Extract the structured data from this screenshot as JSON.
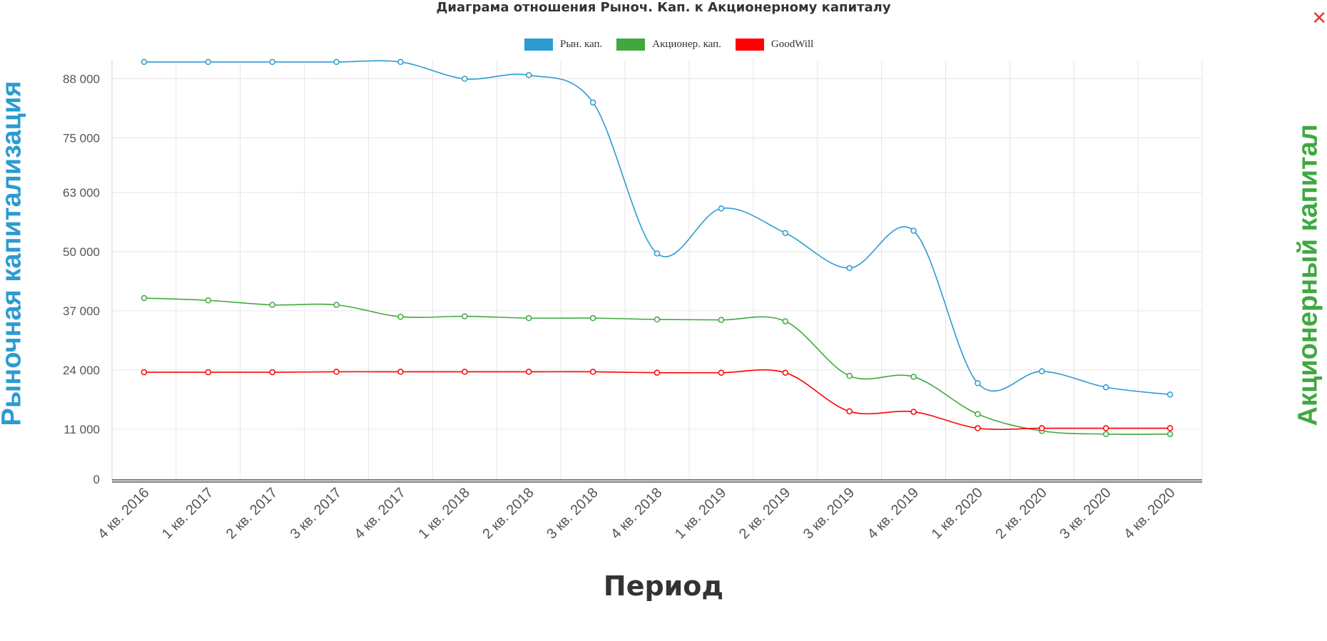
{
  "close_icon": "✕",
  "chart_data": {
    "type": "line",
    "title": "Диаграма отношения Рыноч. Кап. к Акционерному капиталу",
    "xlabel": "Период",
    "ylabel": "Рыночная капитализация",
    "ylabel_right": "Акционерный капитал",
    "categories": [
      "4 кв. 2016",
      "1 кв. 2017",
      "2 кв. 2017",
      "3 кв. 2017",
      "4 кв. 2017",
      "1 кв. 2018",
      "2 кв. 2018",
      "3 кв. 2018",
      "4 кв. 2018",
      "1 кв. 2019",
      "2 кв. 2019",
      "3 кв. 2019",
      "4 кв. 2019",
      "1 кв. 2020",
      "2 кв. 2020",
      "3 кв. 2020",
      "4 кв. 2020"
    ],
    "yticks": [
      0,
      11000,
      24000,
      37000,
      50000,
      63000,
      75000,
      88000
    ],
    "ytick_labels": [
      "0",
      "11 000",
      "24 000",
      "37 000",
      "50 000",
      "63 000",
      "75 000",
      "88 000"
    ],
    "ylim": [
      0,
      92000
    ],
    "grid": true,
    "legend_position": "top",
    "series": [
      {
        "name": "Рын. кап.",
        "color": "#2b9bd1",
        "values": [
          91700,
          91700,
          91700,
          91700,
          91700,
          88000,
          88800,
          82800,
          49600,
          59500,
          54100,
          46400,
          54600,
          21100,
          23700,
          20200,
          18600
        ]
      },
      {
        "name": "Акционер. кап.",
        "color": "#3fa83f",
        "values": [
          39800,
          39300,
          38300,
          38300,
          35700,
          35800,
          35400,
          35400,
          35100,
          35000,
          34700,
          22700,
          22500,
          14300,
          10600,
          9900,
          9900
        ]
      },
      {
        "name": "GoodWill",
        "color": "#ff0000",
        "values": [
          23500,
          23500,
          23500,
          23600,
          23600,
          23600,
          23600,
          23600,
          23400,
          23400,
          23400,
          14900,
          14800,
          11200,
          11200,
          11200,
          11200
        ]
      }
    ]
  }
}
